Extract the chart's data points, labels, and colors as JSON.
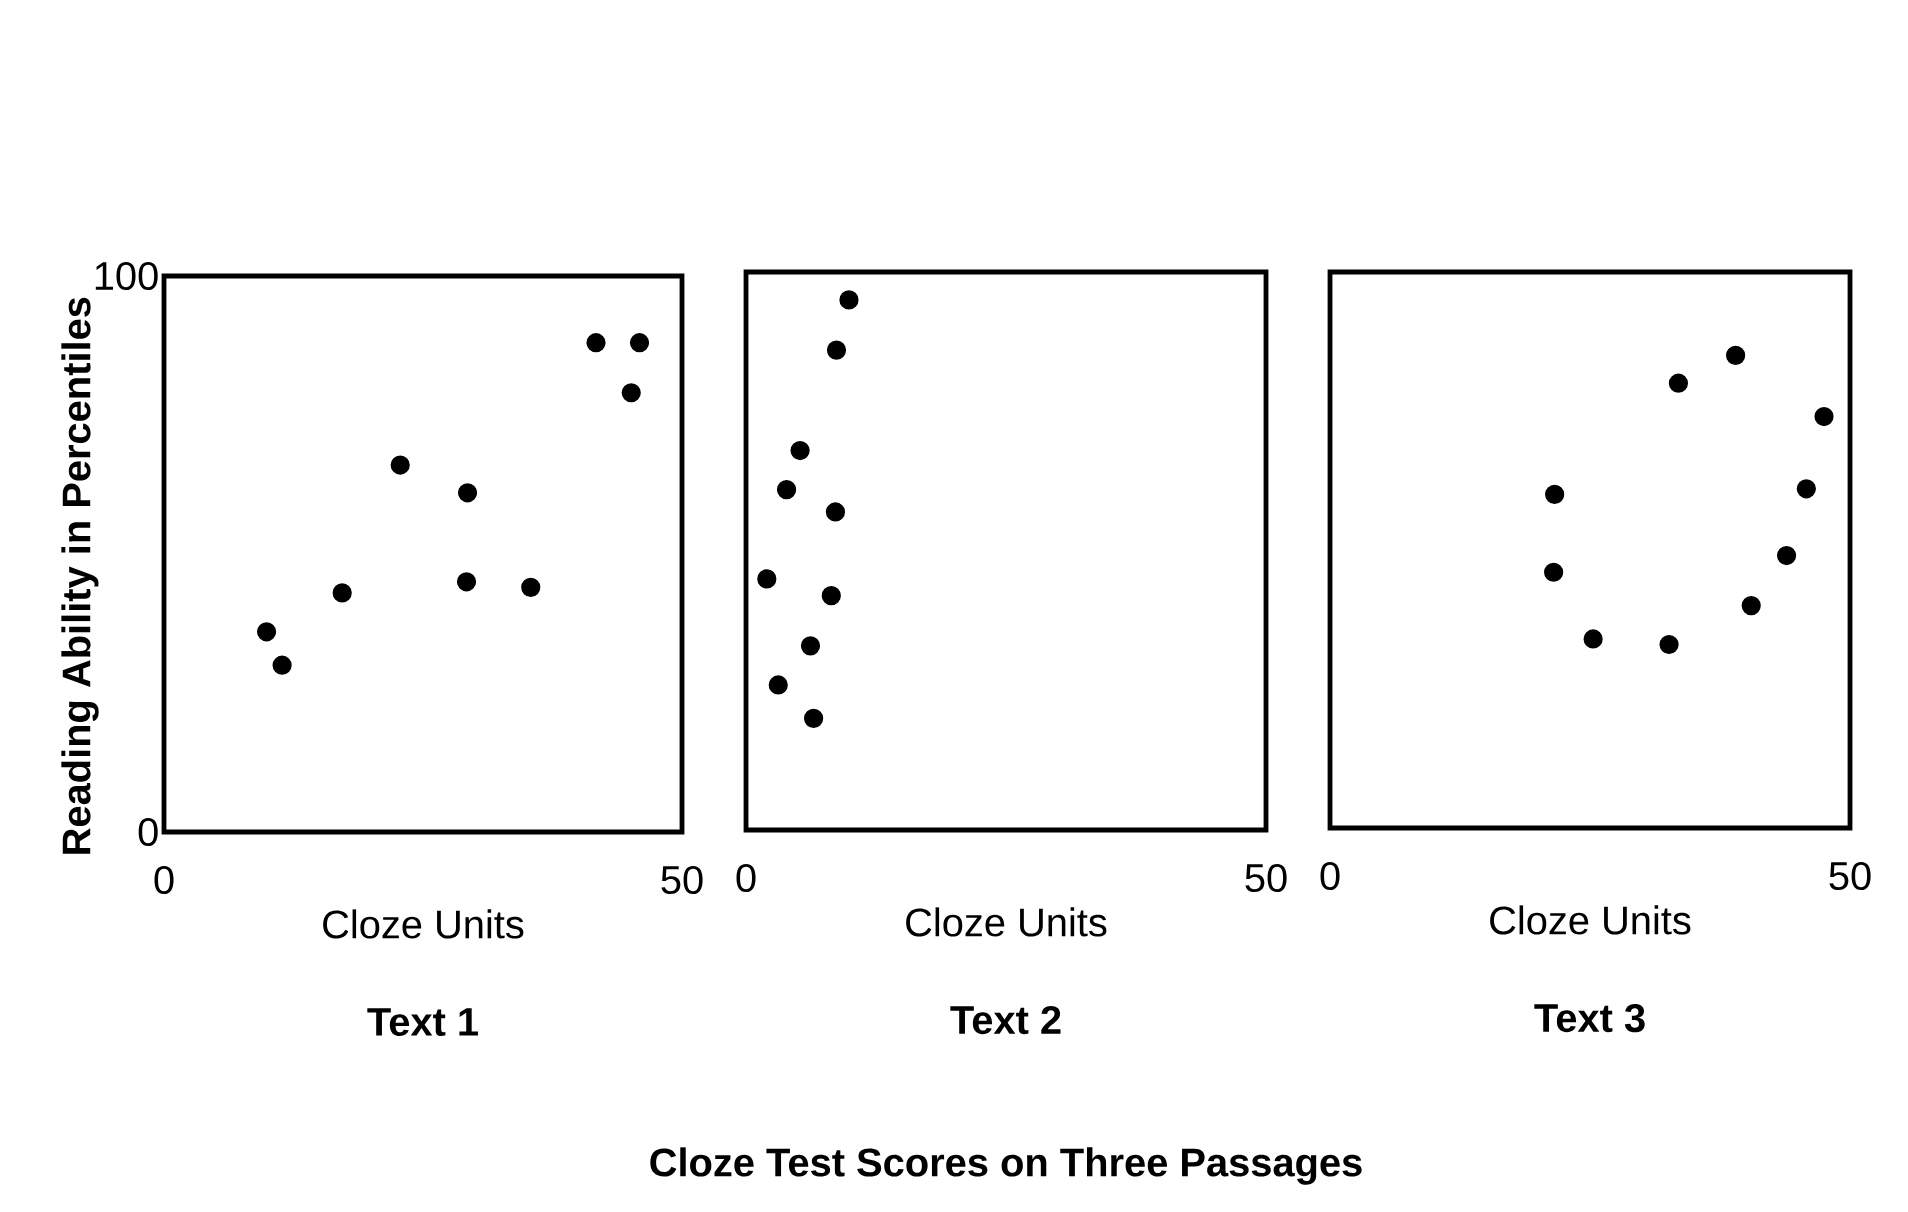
{
  "chart_data": [
    {
      "type": "scatter",
      "title": "Text 1",
      "xlabel": "Cloze Units",
      "ylabel": "Reading Ability in Percentiles",
      "xlim": [
        0,
        50
      ],
      "ylim": [
        0,
        100
      ],
      "xticks": [
        0,
        50
      ],
      "yticks": [
        0,
        100
      ],
      "marker": "circle",
      "color": "#000000",
      "x": [
        9.9,
        11.4,
        17.2,
        22.8,
        29.3,
        29.2,
        35.4,
        41.7,
        45.9,
        45.1
      ],
      "values": [
        36,
        30,
        43,
        66,
        61,
        45,
        44,
        88,
        88,
        79
      ]
    },
    {
      "type": "scatter",
      "title": "Text 2",
      "xlabel": "Cloze Units",
      "xlim": [
        0,
        50
      ],
      "ylim": [
        0,
        100
      ],
      "xticks": [
        0,
        50
      ],
      "yticks": [
        0,
        100
      ],
      "tick_labels": "x",
      "marker": "circle",
      "color": "#000000",
      "annotations": [
        "Cloze Test Scores on Three Passages"
      ],
      "x": [
        9.9,
        8.7,
        5.2,
        3.9,
        8.6,
        2.0,
        8.2,
        6.2,
        3.1,
        6.5
      ],
      "values": [
        95,
        86,
        68,
        61,
        57,
        45,
        42,
        33,
        26,
        20
      ]
    },
    {
      "type": "scatter",
      "title": "Text 3",
      "xlabel": "Cloze Units",
      "xlim": [
        0,
        50
      ],
      "ylim": [
        0,
        100
      ],
      "xticks": [
        0,
        50
      ],
      "yticks": [
        0,
        100
      ],
      "tick_labels": "x",
      "marker": "circle",
      "color": "#000000",
      "x": [
        39.0,
        33.5,
        47.5,
        21.6,
        45.8,
        43.9,
        21.5,
        40.5,
        25.3,
        32.6
      ],
      "values": [
        85,
        80,
        74,
        60,
        61,
        49,
        46,
        40,
        34,
        33
      ]
    }
  ]
}
